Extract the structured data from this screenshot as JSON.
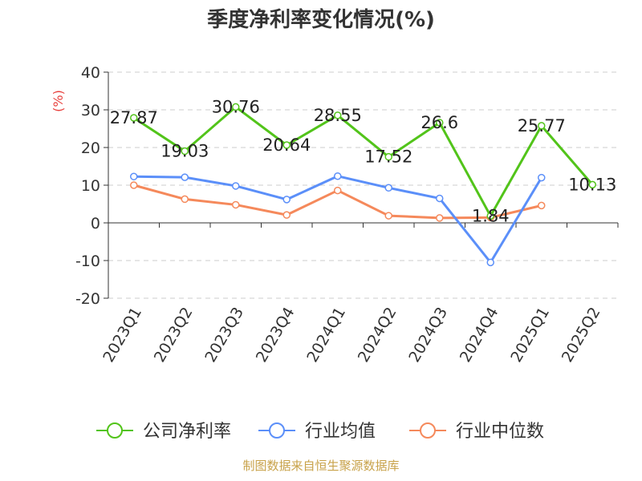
{
  "chart_data": {
    "type": "line",
    "title": "季度净利率变化情况(%)",
    "ylabel": "(%)",
    "xlabel": "",
    "categories": [
      "2023Q1",
      "2023Q2",
      "2023Q3",
      "2023Q4",
      "2024Q1",
      "2024Q2",
      "2024Q3",
      "2024Q4",
      "2025Q1",
      "2025Q2"
    ],
    "ylim": [
      -20,
      40
    ],
    "yticks": [
      -20,
      -10,
      0,
      10,
      20,
      30,
      40
    ],
    "grid": true,
    "legend_position": "bottom",
    "series": [
      {
        "name": "公司净利率",
        "color": "#52c41a",
        "show_labels": true,
        "values": [
          27.87,
          19.03,
          30.76,
          20.64,
          28.55,
          17.52,
          26.6,
          1.84,
          25.77,
          10.13
        ]
      },
      {
        "name": "行业均值",
        "color": "#5b8ff9",
        "show_labels": false,
        "values": [
          12.3,
          12.1,
          9.8,
          6.2,
          12.4,
          9.3,
          6.5,
          -10.5,
          12.0,
          null
        ]
      },
      {
        "name": "行业中位数",
        "color": "#f5895b",
        "show_labels": false,
        "values": [
          10.0,
          6.3,
          4.8,
          2.1,
          8.6,
          1.9,
          1.3,
          1.4,
          4.6,
          null
        ]
      }
    ]
  },
  "source": "制图数据来自恒生聚源数据库"
}
